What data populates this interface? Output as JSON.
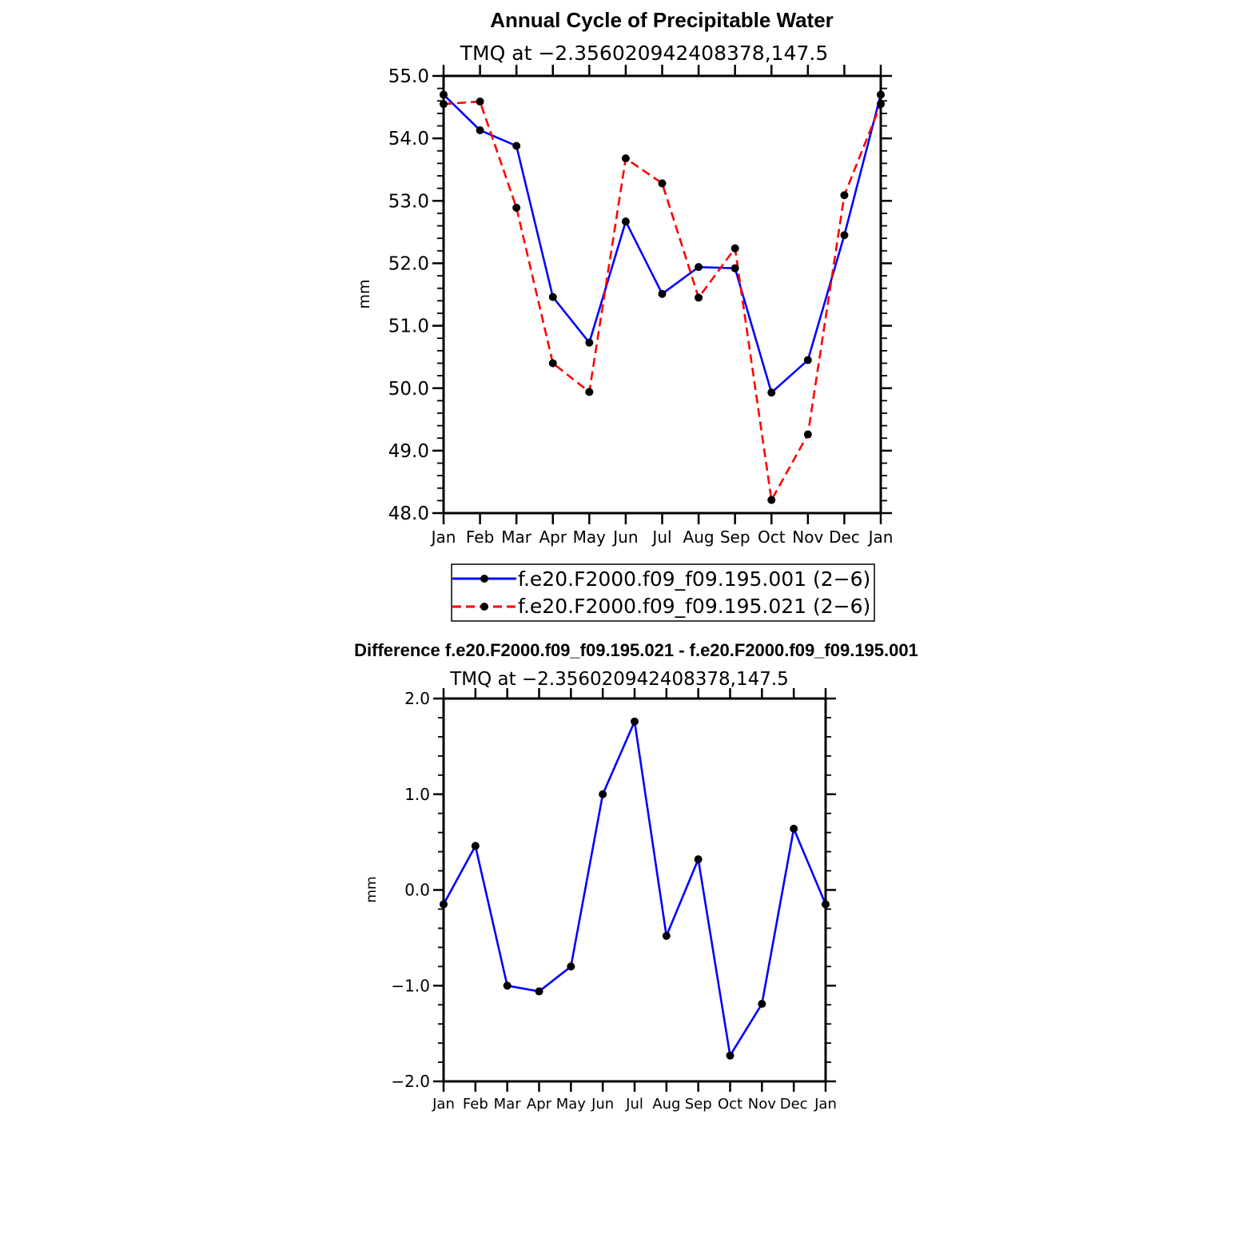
{
  "colors": {
    "series_blue": "#0000ff",
    "series_red": "#ff0000",
    "marker": "#000000",
    "axis": "#000000"
  },
  "chart_data": [
    {
      "type": "line",
      "title": "Annual Cycle of Precipitable Water",
      "subtitle": "TMQ at −2.356020942408378,147.5",
      "ylabel": "mm",
      "xlabel": "",
      "ylim": [
        48.0,
        55.0
      ],
      "yticks": [
        "48.0",
        "49.0",
        "50.0",
        "51.0",
        "52.0",
        "53.0",
        "54.0",
        "55.0"
      ],
      "categories": [
        "Jan",
        "Feb",
        "Mar",
        "Apr",
        "May",
        "Jun",
        "Jul",
        "Aug",
        "Sep",
        "Oct",
        "Nov",
        "Dec",
        "Jan"
      ],
      "series": [
        {
          "name": "f.e20.F2000.f09_f09.195.001 (2−6)",
          "color": "#0000ff",
          "dash": "solid",
          "values": [
            54.7,
            54.13,
            53.88,
            51.46,
            50.73,
            52.67,
            51.51,
            51.94,
            51.92,
            49.93,
            50.45,
            52.45,
            54.7
          ]
        },
        {
          "name": "f.e20.F2000.f09_f09.195.021 (2−6)",
          "color": "#ff0000",
          "dash": "dashed",
          "values": [
            54.55,
            54.59,
            52.89,
            50.4,
            49.94,
            53.68,
            53.28,
            51.45,
            52.24,
            48.21,
            49.26,
            53.09,
            54.55
          ]
        }
      ],
      "legend_position": "bottom"
    },
    {
      "type": "line",
      "title": "Difference f.e20.F2000.f09_f09.195.021 - f.e20.F2000.f09_f09.195.001",
      "subtitle": "TMQ at −2.356020942408378,147.5",
      "ylabel": "mm",
      "xlabel": "",
      "ylim": [
        -2.0,
        2.0
      ],
      "yticks": [
        "−2.0",
        "−1.0",
        "0.0",
        "1.0",
        "2.0"
      ],
      "categories": [
        "Jan",
        "Feb",
        "Mar",
        "Apr",
        "May",
        "Jun",
        "Jul",
        "Aug",
        "Sep",
        "Oct",
        "Nov",
        "Dec",
        "Jan"
      ],
      "series": [
        {
          "name": "Difference",
          "color": "#0000ff",
          "dash": "solid",
          "values": [
            -0.15,
            0.46,
            -1.0,
            -1.06,
            -0.8,
            1.0,
            1.76,
            -0.48,
            0.32,
            -1.73,
            -1.19,
            0.64,
            -0.15
          ]
        }
      ]
    }
  ]
}
